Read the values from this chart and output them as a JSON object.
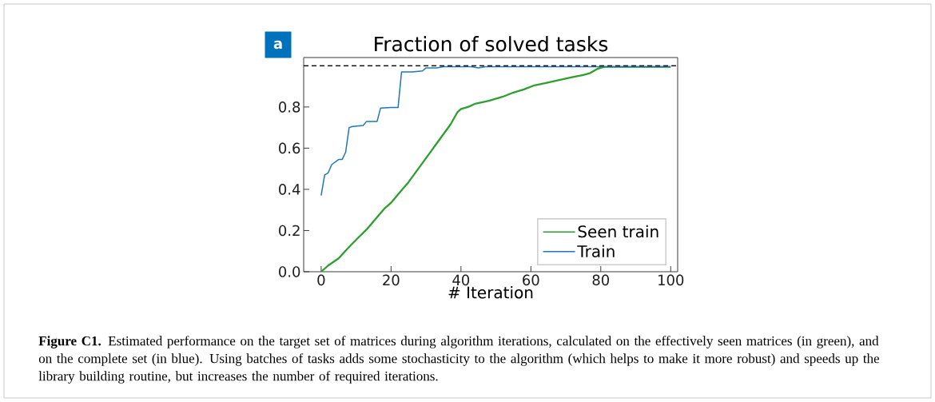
{
  "chart_data": {
    "type": "line",
    "title": "Fraction of solved tasks",
    "xlabel": "# Iteration",
    "annotations": [
      "a",
      "**Figure C1.** Estimated performance on the target set of matrices during algorithm iterations, calculated on the effectively seen matrices (in green), and on the complete set (in blue). Using batches of tasks adds some stochasticity to the algorithm (which helps to make it more robust) and speeds up the library building routine, but increases the number of required iterations."
    ],
    "series": [
      {
        "name": "Seen train",
        "color": "#2ca02c",
        "x": [
          0,
          2,
          5,
          8,
          10,
          13,
          16,
          18,
          20,
          22,
          25,
          28,
          31,
          34,
          37,
          39,
          40,
          42,
          44,
          48,
          52,
          55,
          58,
          61,
          64,
          68,
          72,
          75,
          77,
          79,
          81,
          100
        ],
        "values": [
          0,
          0.03,
          0.065,
          0.12,
          0.155,
          0.205,
          0.265,
          0.305,
          0.335,
          0.375,
          0.435,
          0.505,
          0.575,
          0.645,
          0.715,
          0.775,
          0.79,
          0.8,
          0.815,
          0.83,
          0.85,
          0.87,
          0.885,
          0.905,
          0.915,
          0.93,
          0.945,
          0.955,
          0.965,
          0.985,
          0.995,
          0.995
        ]
      },
      {
        "name": "Train",
        "color": "#1f77b4",
        "x": [
          0,
          1,
          2,
          3,
          5,
          6,
          7,
          8,
          9,
          12,
          13,
          16,
          17,
          20,
          22,
          23,
          26,
          29,
          30,
          33,
          35,
          43,
          45,
          47,
          100
        ],
        "values": [
          0.37,
          0.47,
          0.48,
          0.52,
          0.545,
          0.545,
          0.58,
          0.7,
          0.705,
          0.71,
          0.73,
          0.73,
          0.795,
          0.797,
          0.797,
          0.97,
          0.97,
          0.975,
          0.99,
          0.99,
          0.995,
          0.995,
          0.99,
          0.995,
          0.995
        ]
      }
    ],
    "xlim": [
      -5,
      102
    ],
    "ylim": [
      0,
      1.04
    ],
    "xticks": [
      0,
      20,
      40,
      60,
      80,
      100
    ],
    "yticks": [
      {
        "value": 0,
        "label": "0.0"
      },
      0.2,
      0.4,
      0.6,
      0.8
    ],
    "ref_lines": [
      {
        "axis": "y",
        "value": 1.0,
        "color": "#000000",
        "line_style": "dashed"
      }
    ],
    "legend": "bottom right",
    "line_style": "solid"
  }
}
